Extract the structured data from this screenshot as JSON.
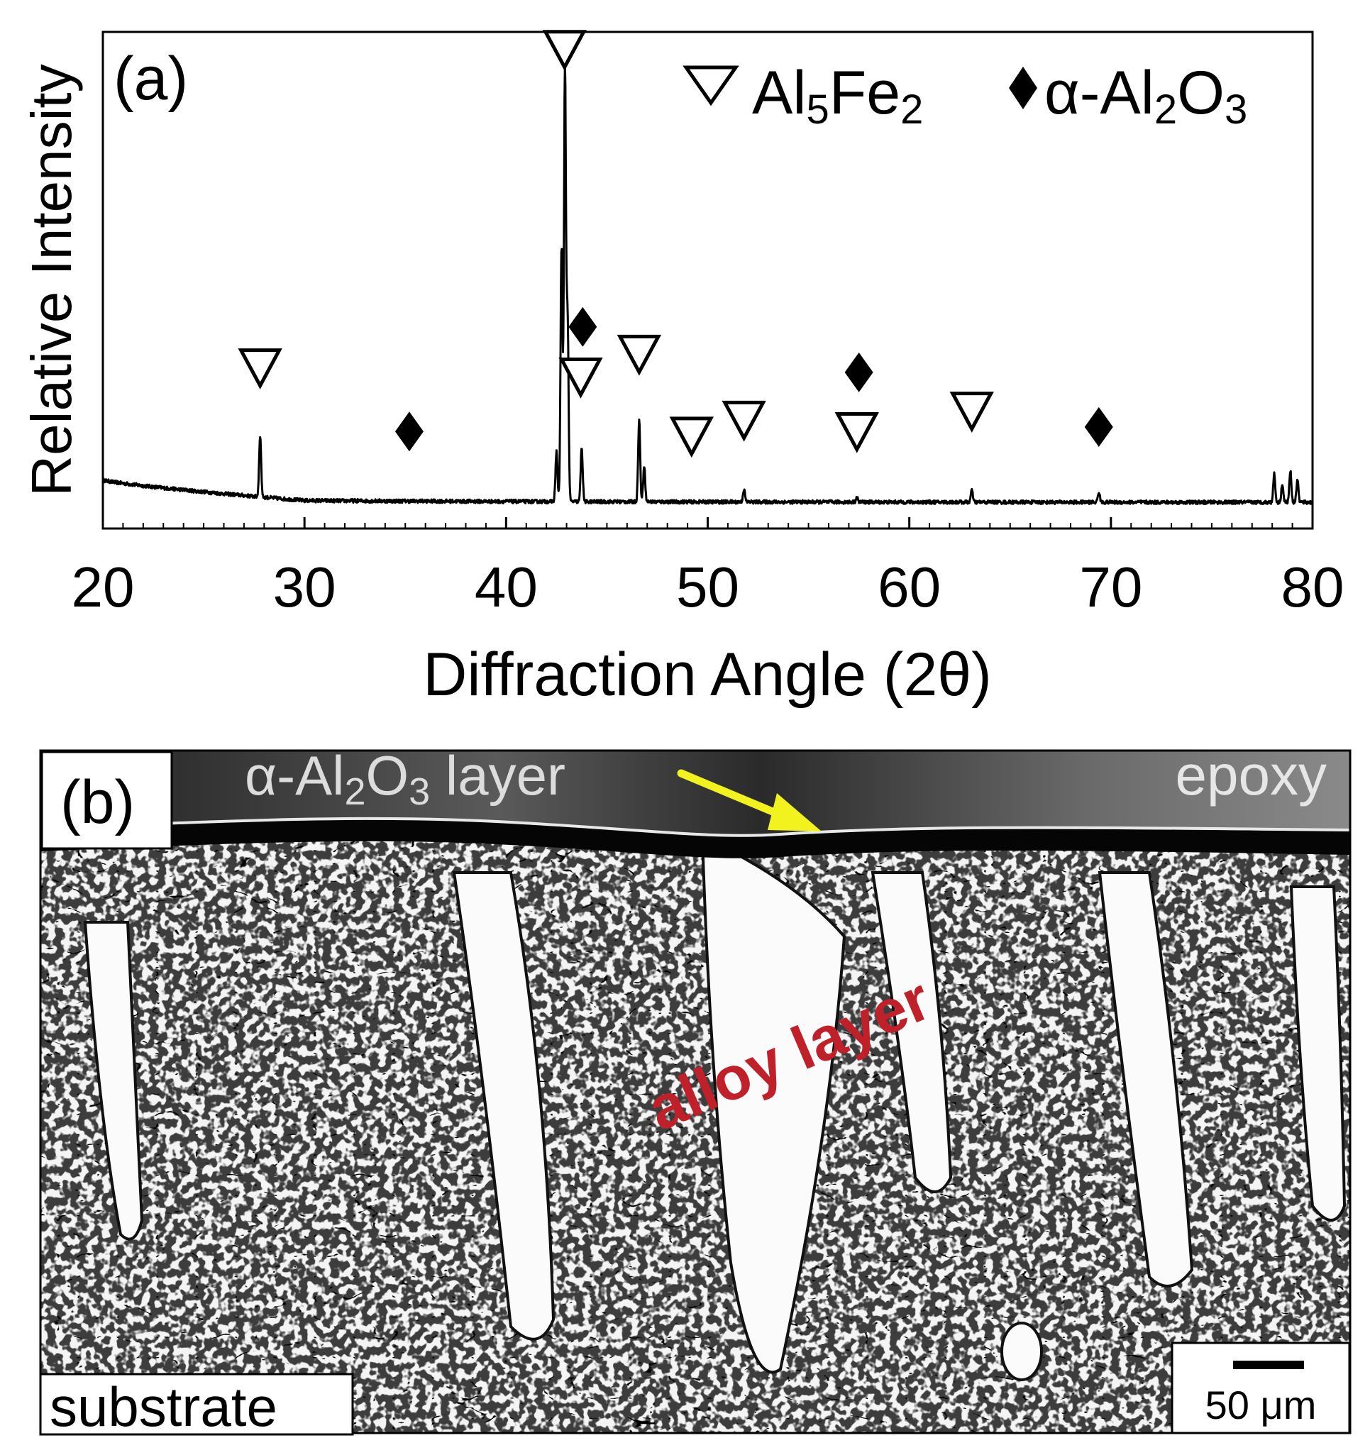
{
  "chart_data": [
    {
      "type": "line",
      "panel_label": "(a)",
      "xlabel": "Diffraction Angle (2θ)",
      "ylabel": "Relative Intensity",
      "xlim": [
        20,
        80
      ],
      "ylim": [
        0,
        1.04
      ],
      "x_ticks": [
        "20",
        "30",
        "40",
        "50",
        "60",
        "70",
        "80"
      ],
      "x_tick_values": [
        20,
        30,
        40,
        50,
        60,
        70,
        80
      ],
      "legend": {
        "placement": "top-right",
        "entries": [
          {
            "marker": "open-triangle-down",
            "base": "Al",
            "sub1": "5",
            "mid": "Fe",
            "sub2": "2"
          },
          {
            "marker": "filled-diamond",
            "base": "α-Al",
            "sub1": "2",
            "mid": "O",
            "sub2": "3"
          }
        ]
      },
      "background": {
        "start": [
          20,
          0.055
        ],
        "end": [
          30,
          0.01
        ],
        "level": 0.006
      },
      "peaks": [
        {
          "x": 27.8,
          "y": 0.135
        },
        {
          "x": 42.5,
          "y": 0.11
        },
        {
          "x": 42.75,
          "y": 0.56
        },
        {
          "x": 42.92,
          "y": 0.95
        },
        {
          "x": 43.05,
          "y": 0.4
        },
        {
          "x": 43.75,
          "y": 0.12
        },
        {
          "x": 46.6,
          "y": 0.18
        },
        {
          "x": 46.85,
          "y": 0.08
        },
        {
          "x": 51.8,
          "y": 0.028
        },
        {
          "x": 57.4,
          "y": 0.01
        },
        {
          "x": 63.1,
          "y": 0.026
        },
        {
          "x": 69.4,
          "y": 0.022
        },
        {
          "x": 78.1,
          "y": 0.062
        },
        {
          "x": 78.5,
          "y": 0.04
        },
        {
          "x": 78.9,
          "y": 0.07
        },
        {
          "x": 79.25,
          "y": 0.05
        }
      ],
      "markers": [
        {
          "phase": "Al5Fe2",
          "x": 27.8,
          "y": 0.25
        },
        {
          "phase": "Al2O3",
          "x": 35.2,
          "y": 0.115
        },
        {
          "phase": "Al5Fe2",
          "x": 42.9,
          "y": 0.95
        },
        {
          "phase": "Al2O3",
          "x": 43.8,
          "y": 0.345
        },
        {
          "phase": "Al5Fe2",
          "x": 43.7,
          "y": 0.23
        },
        {
          "phase": "Al5Fe2",
          "x": 46.6,
          "y": 0.28
        },
        {
          "phase": "Al5Fe2",
          "x": 49.2,
          "y": 0.1
        },
        {
          "phase": "Al5Fe2",
          "x": 51.8,
          "y": 0.135
        },
        {
          "phase": "Al2O3",
          "x": 57.5,
          "y": 0.245
        },
        {
          "phase": "Al5Fe2",
          "x": 57.4,
          "y": 0.11
        },
        {
          "phase": "Al5Fe2",
          "x": 63.1,
          "y": 0.155
        },
        {
          "phase": "Al2O3",
          "x": 69.4,
          "y": 0.125
        }
      ],
      "colors": {
        "line": "#000000",
        "axis": "#000000"
      }
    }
  ],
  "micrograph": {
    "panel_label": "(b)",
    "layer_label": {
      "base": "α-Al",
      "sub1": "2",
      "mid": "O",
      "sub2": "3",
      "tail": " layer"
    },
    "epoxy_label": "epoxy",
    "alloy_label": "alloy layer",
    "substrate_label": "substrate",
    "scale_bar_label": "50 μm",
    "colors": {
      "alloy_label": "#c0202a",
      "arrow": "#f2f21e",
      "epoxy": "#3a3a3a"
    }
  }
}
